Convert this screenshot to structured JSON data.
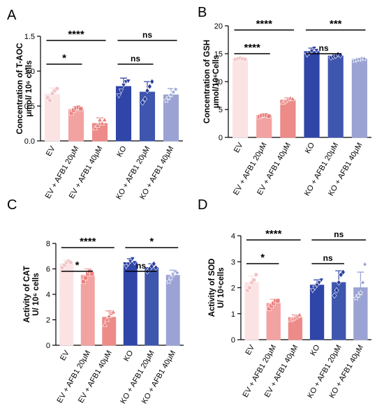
{
  "figure": {
    "colors": {
      "EV": "#fbe3e4",
      "EV_AFB1_20": "#f2a2a0",
      "EV_AFB1_40": "#ec8b88",
      "KO": "#2f45a8",
      "KO_AFB1_20": "#3e56ad",
      "KO_AFB1_40": "#9aa3d3"
    }
  },
  "chart_data": [
    {
      "panel": "A",
      "type": "bar",
      "ylabel_lines": [
        "Concentration of T-AOC",
        "μmol/ 10⁶ cells"
      ],
      "categories": [
        "EV",
        "EV + AFB1 20μM",
        "EV + AFB1 40μM",
        "KO",
        "KO + AFB1 20μM",
        "KO + AFB1 40μM"
      ],
      "values": [
        0.67,
        0.45,
        0.25,
        0.78,
        0.7,
        0.66
      ],
      "errors": [
        0.09,
        0.04,
        0.08,
        0.12,
        0.15,
        0.09
      ],
      "points": [
        [
          0.62,
          0.58,
          0.68,
          0.72,
          0.75
        ],
        [
          0.4,
          0.44,
          0.47,
          0.48,
          0.46
        ],
        [
          0.18,
          0.22,
          0.3,
          0.25,
          0.3
        ],
        [
          0.65,
          0.72,
          0.8,
          0.85,
          0.86
        ],
        [
          0.55,
          0.6,
          0.72,
          0.78,
          0.85
        ],
        [
          0.58,
          0.62,
          0.66,
          0.7,
          0.74
        ]
      ],
      "markers": [
        "circle",
        "square",
        "triangle-up",
        "triangle-down",
        "diamond",
        "star"
      ],
      "ylim": [
        0,
        1.5
      ],
      "yticks": [
        "0.0",
        "0.5",
        "1.0",
        "1.5"
      ],
      "significance": [
        {
          "from": 0,
          "to": 2,
          "label": "****",
          "level": 2
        },
        {
          "from": 0,
          "to": 1,
          "label": "*",
          "level": 1
        },
        {
          "from": 3,
          "to": 5,
          "label": "ns",
          "level": 2
        },
        {
          "from": 3,
          "to": 4,
          "label": "ns",
          "level": 1
        }
      ]
    },
    {
      "panel": "B",
      "type": "bar",
      "ylabel_lines": [
        "Concentration of GSH",
        "μmol/10⁶Cells"
      ],
      "categories": [
        "EV",
        "EV + AFB1 20μM",
        "EV + AFB1 40μM",
        "KO",
        "KO + AFB1 20μM",
        "KO + AFB1 40μM"
      ],
      "values": [
        14.1,
        3.9,
        6.7,
        15.4,
        14.6,
        14.0
      ],
      "errors": [
        0.1,
        0.2,
        0.4,
        0.6,
        0.3,
        0.2
      ],
      "points": [
        [
          14.0,
          14.1,
          14.2,
          14.1,
          14.0
        ],
        [
          3.7,
          3.9,
          4.0,
          4.0,
          3.8
        ],
        [
          6.2,
          6.5,
          6.8,
          7.0,
          6.9
        ],
        [
          14.8,
          15.2,
          15.5,
          16.0,
          15.6
        ],
        [
          14.3,
          14.5,
          14.6,
          14.9,
          14.7
        ],
        [
          13.8,
          14.0,
          14.0,
          14.2,
          14.1
        ]
      ],
      "markers": [
        "circle",
        "square",
        "triangle-up",
        "triangle-down",
        "diamond",
        "star"
      ],
      "ylim": [
        0,
        20
      ],
      "yticks": [
        "0",
        "5",
        "10",
        "15",
        "20"
      ],
      "significance": [
        {
          "from": 0,
          "to": 2,
          "label": "****",
          "level": 2
        },
        {
          "from": 0,
          "to": 1,
          "label": "****",
          "level": 1
        },
        {
          "from": 3,
          "to": 5,
          "label": "***",
          "level": 2
        },
        {
          "from": 3,
          "to": 4,
          "label": "ns",
          "level": 1
        }
      ]
    },
    {
      "panel": "C",
      "type": "bar",
      "ylabel_lines": [
        "Activity of  CAT",
        "U/ 10⁶ cells"
      ],
      "categories": [
        "EV",
        "EV + AFB1 20μM",
        "EV + AFB1 40μM",
        "KO",
        "KO + AFB1 20μM",
        "KO + AFB1 40μM"
      ],
      "values": [
        6.4,
        5.5,
        2.2,
        6.5,
        6.1,
        5.5
      ],
      "errors": [
        0.3,
        0.5,
        0.5,
        0.3,
        0.3,
        0.4
      ],
      "points": [
        [
          6.1,
          6.3,
          6.5,
          6.6,
          6.5
        ],
        [
          5.0,
          5.3,
          5.6,
          5.8,
          5.6
        ],
        [
          1.6,
          2.0,
          2.3,
          2.5,
          2.6
        ],
        [
          6.2,
          6.4,
          6.6,
          6.8,
          6.5
        ],
        [
          5.8,
          6.0,
          6.2,
          6.4,
          6.1
        ],
        [
          5.0,
          5.3,
          5.6,
          5.8,
          5.7
        ]
      ],
      "markers": [
        "circle",
        "square",
        "triangle-up",
        "triangle-down",
        "diamond",
        "star"
      ],
      "ylim": [
        0,
        8
      ],
      "yticks": [
        "0",
        "2",
        "4",
        "6",
        "8"
      ],
      "significance": [
        {
          "from": 0,
          "to": 2,
          "label": "****",
          "level": 2
        },
        {
          "from": 0,
          "to": 1,
          "label": "*",
          "level": 1
        },
        {
          "from": 3,
          "to": 5,
          "label": "*",
          "level": 2
        },
        {
          "from": 3,
          "to": 4,
          "label": "ns",
          "level": 1
        }
      ]
    },
    {
      "panel": "D",
      "type": "bar",
      "ylabel_lines": [
        "Activity of  SOD",
        "U/ 10⁶cells"
      ],
      "categories": [
        "EV",
        "EV + AFB1 20μM",
        "EV + AFB1 40μM",
        "KO",
        "KO + AFB1 20μM",
        "KO + AFB1 40μM"
      ],
      "values": [
        2.2,
        1.4,
        0.85,
        2.1,
        2.2,
        2.0
      ],
      "errors": [
        0.25,
        0.15,
        0.1,
        0.2,
        0.45,
        0.6
      ],
      "points": [
        [
          1.9,
          2.0,
          2.2,
          2.3,
          2.5
        ],
        [
          1.2,
          1.3,
          1.4,
          1.5,
          1.5
        ],
        [
          0.75,
          0.8,
          0.85,
          0.9,
          0.95
        ],
        [
          1.9,
          2.0,
          2.1,
          2.2,
          2.3
        ],
        [
          1.7,
          1.9,
          2.2,
          2.5,
          2.6
        ],
        [
          1.6,
          1.7,
          1.8,
          2.2,
          2.9
        ]
      ],
      "markers": [
        "circle",
        "square",
        "triangle-up",
        "triangle-down",
        "diamond",
        "star"
      ],
      "ylim": [
        0,
        4
      ],
      "yticks": [
        "0",
        "1",
        "2",
        "3",
        "4"
      ],
      "significance": [
        {
          "from": 0,
          "to": 2,
          "label": "****",
          "level": 2
        },
        {
          "from": 0,
          "to": 1,
          "label": "*",
          "level": 1
        },
        {
          "from": 3,
          "to": 5,
          "label": "ns",
          "level": 2
        },
        {
          "from": 3,
          "to": 4,
          "label": "ns",
          "level": 1
        }
      ]
    }
  ]
}
